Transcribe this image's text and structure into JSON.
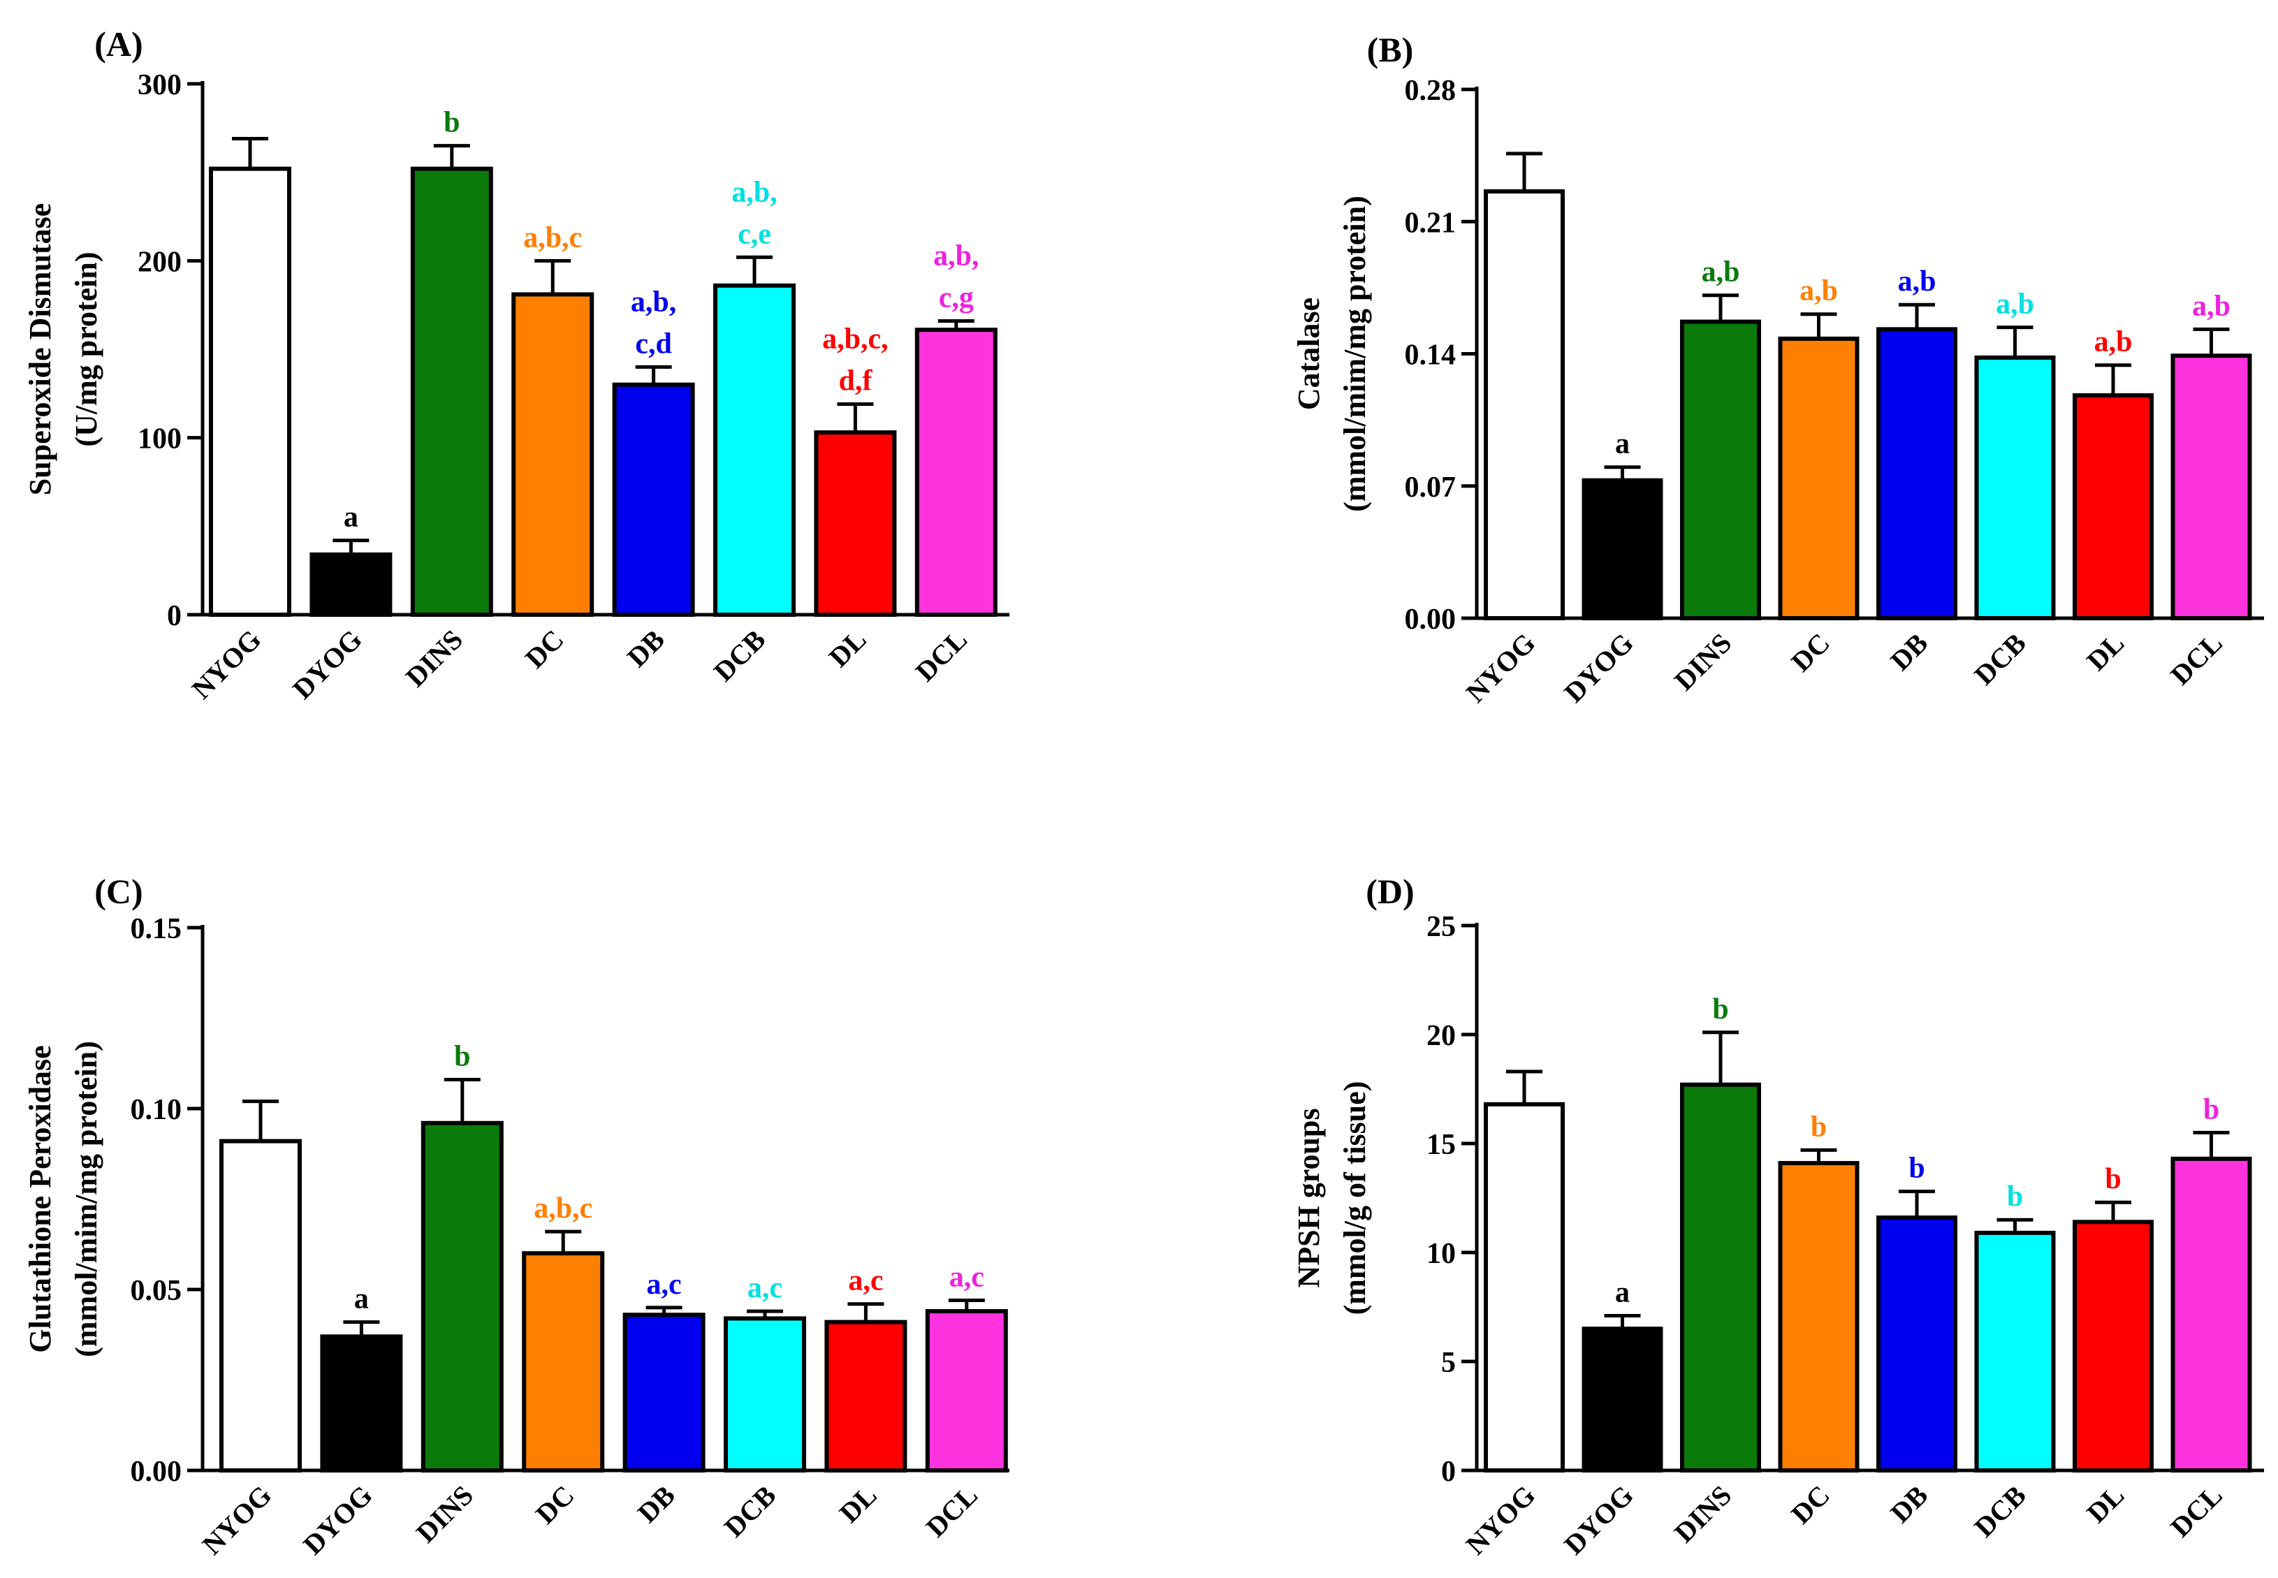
{
  "chart_data": [
    {
      "panel_label": "(A)",
      "type": "bar",
      "ylabel_lines": [
        "Superoxide Dismutase",
        "(U/mg protein)"
      ],
      "ylim": [
        0,
        300
      ],
      "yticks": [
        0,
        100,
        200,
        300
      ],
      "yticklabels": [
        "0",
        "100",
        "200",
        "300"
      ],
      "categories": [
        "NYOG",
        "DYOG",
        "DINS",
        "DC",
        "DB",
        "DCB",
        "DL",
        "DCL"
      ],
      "values": [
        252,
        34,
        252,
        181,
        130,
        186,
        103,
        161
      ],
      "errors": [
        17,
        8,
        13,
        19,
        10,
        16,
        16,
        5
      ],
      "annotations": [
        [],
        [
          "a"
        ],
        [
          "b"
        ],
        [
          "a,b,c"
        ],
        [
          "a,b,",
          "c,d"
        ],
        [
          "a,b,",
          "c,e"
        ],
        [
          "a,b,c,",
          "d,f"
        ],
        [
          "a,b,",
          "c,g"
        ]
      ]
    },
    {
      "panel_label": "(B)",
      "type": "bar",
      "ylabel_lines": [
        "Catalase",
        "(mmol/mim/mg protein)"
      ],
      "ylim": [
        0,
        0.28
      ],
      "yticks": [
        0,
        0.07,
        0.14,
        0.21,
        0.28
      ],
      "yticklabels": [
        "0.00",
        "0.07",
        "0.14",
        "0.21",
        "0.28"
      ],
      "categories": [
        "NYOG",
        "DYOG",
        "DINS",
        "DC",
        "DB",
        "DCB",
        "DL",
        "DCL"
      ],
      "values": [
        0.226,
        0.073,
        0.157,
        0.148,
        0.153,
        0.138,
        0.118,
        0.139
      ],
      "errors": [
        0.02,
        0.007,
        0.014,
        0.013,
        0.013,
        0.016,
        0.016,
        0.014
      ],
      "annotations": [
        [],
        [
          "a"
        ],
        [
          "a,b"
        ],
        [
          "a,b"
        ],
        [
          "a,b"
        ],
        [
          "a,b"
        ],
        [
          "a,b"
        ],
        [
          "a,b"
        ]
      ]
    },
    {
      "panel_label": "(C)",
      "type": "bar",
      "ylabel_lines": [
        "Glutathione Peroxidase",
        "(mmol/mim/mg protein)"
      ],
      "ylim": [
        0,
        0.15
      ],
      "yticks": [
        0,
        0.05,
        0.1,
        0.15
      ],
      "yticklabels": [
        "0.00",
        "0.05",
        "0.10",
        "0.15"
      ],
      "categories": [
        "NYOG",
        "DYOG",
        "DINS",
        "DC",
        "DB",
        "DCB",
        "DL",
        "DCL"
      ],
      "values": [
        0.091,
        0.037,
        0.096,
        0.06,
        0.043,
        0.042,
        0.041,
        0.044
      ],
      "errors": [
        0.011,
        0.004,
        0.012,
        0.006,
        0.002,
        0.002,
        0.005,
        0.003
      ],
      "annotations": [
        [],
        [
          "a"
        ],
        [
          "b"
        ],
        [
          "a,b,c"
        ],
        [
          "a,c"
        ],
        [
          "a,c"
        ],
        [
          "a,c"
        ],
        [
          "a,c"
        ]
      ]
    },
    {
      "panel_label": "(D)",
      "type": "bar",
      "ylabel_lines": [
        "NPSH groups",
        "(mmol/g of tissue)"
      ],
      "ylim": [
        0,
        25
      ],
      "yticks": [
        0,
        5,
        10,
        15,
        20,
        25
      ],
      "yticklabels": [
        "0",
        "5",
        "10",
        "15",
        "20",
        "25"
      ],
      "categories": [
        "NYOG",
        "DYOG",
        "DINS",
        "DC",
        "DB",
        "DCB",
        "DL",
        "DCL"
      ],
      "values": [
        16.8,
        6.5,
        17.7,
        14.1,
        11.6,
        10.9,
        11.4,
        14.3
      ],
      "errors": [
        1.5,
        0.6,
        2.4,
        0.6,
        1.2,
        0.6,
        0.9,
        1.2
      ],
      "annotations": [
        [],
        [
          "a"
        ],
        [
          "b"
        ],
        [
          "b"
        ],
        [
          "b"
        ],
        [
          "b"
        ],
        [
          "b"
        ],
        [
          "b"
        ]
      ]
    }
  ],
  "series_colors": [
    "#ffffff",
    "#000000",
    "#0a7a0a",
    "#ff7f00",
    "#0000ee",
    "#00ffff",
    "#ff0000",
    "#ff33dd"
  ],
  "annotation_colors": [
    "#000000",
    "#000000",
    "#0a7a0a",
    "#ff7f00",
    "#0000ee",
    "#00e0e0",
    "#ff0000",
    "#ee22dd"
  ]
}
